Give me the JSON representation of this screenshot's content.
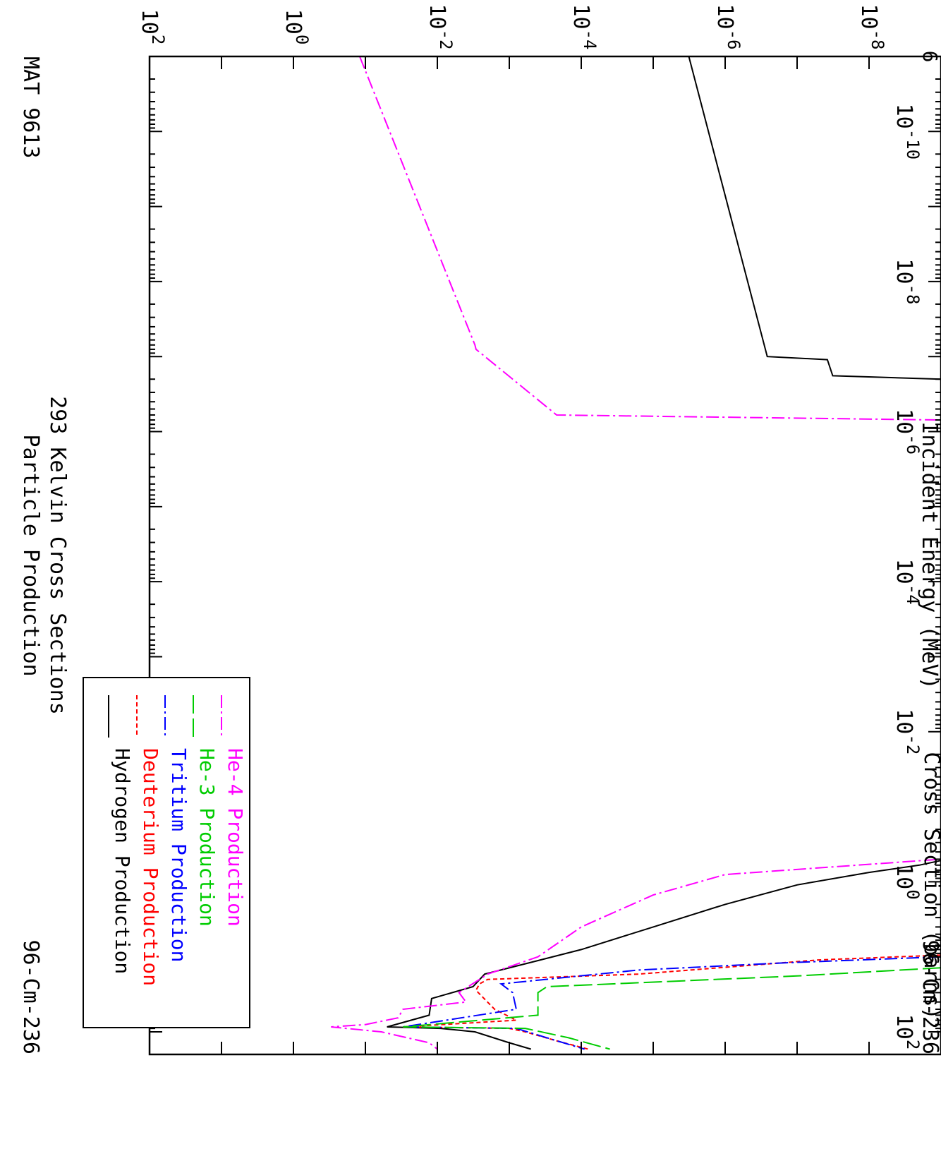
{
  "chart_data": {
    "type": "line",
    "title": "Particle Production",
    "subtitle": "293 Kelvin Cross Sections",
    "mat_label": "MAT 9613",
    "nuclide_label_top": "96-Cm-236",
    "nuclide_label_bottom": "96-Cm-236",
    "xlabel": "Incident Energy (MeV)",
    "ylabel": "Cross Section (barns)",
    "xscale": "log",
    "yscale": "log",
    "xlim": [
      1e-11,
      200
    ],
    "ylim": [
      1e-09,
      100
    ],
    "grid": false,
    "legend_position": "top-left",
    "x_tick_labels": [
      {
        "base": "10",
        "exp": "-10",
        "value": 1e-10
      },
      {
        "base": "10",
        "exp": "-8",
        "value": 1e-08
      },
      {
        "base": "10",
        "exp": "-6",
        "value": 1e-06
      },
      {
        "base": "10",
        "exp": "-4",
        "value": 0.0001
      },
      {
        "base": "10",
        "exp": "-2",
        "value": 0.01
      },
      {
        "base": "10",
        "exp": "0",
        "value": 1
      },
      {
        "base": "10",
        "exp": "2",
        "value": 100
      }
    ],
    "y_tick_labels": [
      {
        "base": "10",
        "exp": "-8",
        "value": 1e-08
      },
      {
        "base": "10",
        "exp": "-6",
        "value": 1e-06
      },
      {
        "base": "10",
        "exp": "-4",
        "value": 0.0001
      },
      {
        "base": "10",
        "exp": "-2",
        "value": 0.01
      },
      {
        "base": "10",
        "exp": "0",
        "value": 1
      },
      {
        "base": "10",
        "exp": "2",
        "value": 100
      }
    ],
    "corner_label": "6",
    "series": [
      {
        "name": "Hydrogen Production",
        "color": "#000000",
        "dash": "solid",
        "points": [
          [
            1e-11,
            3.2e-06
          ],
          [
            1e-07,
            2.6e-07
          ],
          [
            1.1e-07,
            3.8e-08
          ],
          [
            1.8e-07,
            3.2e-08
          ],
          [
            2e-07,
            1e-09
          ],
          [
            0.52,
            1e-09
          ],
          [
            0.6,
            2e-09
          ],
          [
            0.75,
            1e-08
          ],
          [
            1.1,
            1e-07
          ],
          [
            2.0,
            1e-06
          ],
          [
            4,
            1e-05
          ],
          [
            8,
            0.0001
          ],
          [
            17,
            0.0022
          ],
          [
            25,
            0.0032
          ],
          [
            36,
            0.012
          ],
          [
            60,
            0.013
          ],
          [
            86,
            0.05
          ],
          [
            90,
            0.009
          ],
          [
            100,
            0.003
          ],
          [
            140,
            0.001
          ],
          [
            170,
            0.0005
          ]
        ]
      },
      {
        "name": "Deuterium Production",
        "color": "#ff0000",
        "dash": "6,4",
        "points": [
          [
            9.5,
            1e-09
          ],
          [
            11,
            5e-08
          ],
          [
            17,
            1.6e-05
          ],
          [
            20,
            0.002
          ],
          [
            23,
            0.0026
          ],
          [
            28,
            0.0029
          ],
          [
            50,
            0.0016
          ],
          [
            70,
            0.0008
          ],
          [
            86,
            0.03
          ],
          [
            90,
            0.001
          ],
          [
            100,
            0.0006
          ],
          [
            135,
            0.0002
          ],
          [
            170,
            8e-05
          ]
        ]
      },
      {
        "name": "Tritium Production",
        "color": "#0000ff",
        "dash": "18,5,3,5",
        "points": [
          [
            10,
            1e-09
          ],
          [
            12,
            1.4e-07
          ],
          [
            15,
            1.6e-05
          ],
          [
            23,
            0.0013
          ],
          [
            30,
            0.0009
          ],
          [
            50,
            0.0008
          ],
          [
            86,
            0.03
          ],
          [
            90,
            0.0008
          ],
          [
            120,
            0.0003
          ],
          [
            170,
            9e-05
          ]
        ]
      },
      {
        "name": "He-3 Production",
        "color": "#00cc00",
        "dash": "26,7",
        "points": [
          [
            14,
            1e-09
          ],
          [
            18,
            1e-07
          ],
          [
            25,
            0.0003
          ],
          [
            30,
            0.0004
          ],
          [
            60,
            0.0004
          ],
          [
            86,
            0.03
          ],
          [
            90,
            0.0006
          ],
          [
            120,
            0.00015
          ],
          [
            170,
            4e-05
          ]
        ]
      },
      {
        "name": "He-4 Production",
        "color": "#ff00ff",
        "dash": "18,5,3,5",
        "points": [
          [
            1e-11,
            0.12
          ],
          [
            7e-08,
            0.003
          ],
          [
            8e-08,
            0.0029
          ],
          [
            6e-07,
            0.00022
          ],
          [
            7e-07,
            1e-09
          ],
          [
            0.5,
            1e-09
          ],
          [
            0.8,
            1e-06
          ],
          [
            1.5,
            1e-05
          ],
          [
            4,
            0.0001
          ],
          [
            10,
            0.0004
          ],
          [
            17,
            0.002
          ],
          [
            30,
            0.005
          ],
          [
            40,
            0.004
          ],
          [
            50,
            0.03
          ],
          [
            65,
            0.035
          ],
          [
            80,
            0.1
          ],
          [
            86,
            0.3
          ],
          [
            100,
            0.06
          ],
          [
            140,
            0.013
          ],
          [
            170,
            0.01
          ]
        ]
      }
    ]
  }
}
